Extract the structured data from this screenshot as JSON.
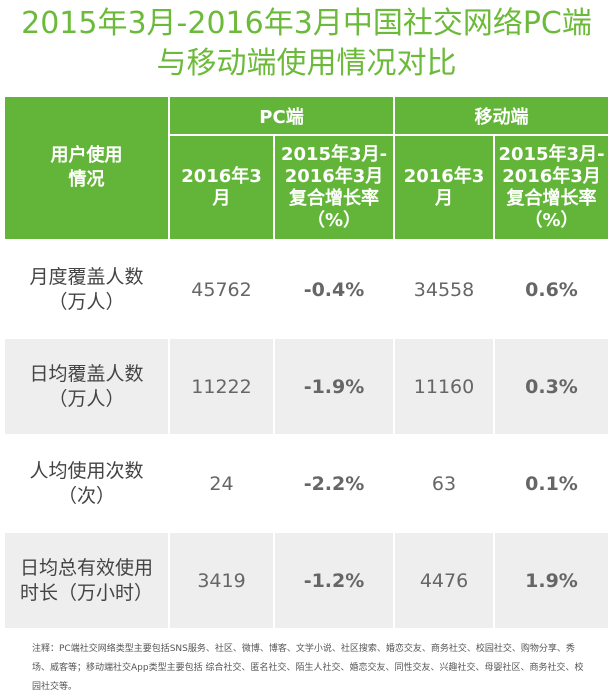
{
  "title": {
    "line1": "2015年3月-2016年3月中国社交网络PC端",
    "line2": "与移动端使用情况对比"
  },
  "header": {
    "corner": [
      "用户使用",
      "情况"
    ],
    "pc_label": "PC端",
    "mobile_label": "移动端",
    "col_value": [
      "2016年3",
      "月"
    ],
    "col_rate": [
      "2015年3月-",
      "2016年3月",
      "复合增长率",
      "（%）"
    ]
  },
  "rows": [
    {
      "label": [
        "月度覆盖人数",
        "（万人）"
      ],
      "pc_value": "45762",
      "pc_rate": "-0.4%",
      "mobile_value": "34558",
      "mobile_rate": "0.6%"
    },
    {
      "label": [
        "日均覆盖人数",
        "（万人）"
      ],
      "pc_value": "11222",
      "pc_rate": "-1.9%",
      "mobile_value": "11160",
      "mobile_rate": "0.3%"
    },
    {
      "label": [
        "人均使用次数",
        "（次）"
      ],
      "pc_value": "24",
      "pc_rate": "-2.2%",
      "mobile_value": "63",
      "mobile_rate": "0.1%"
    },
    {
      "label": [
        "日均总有效使用",
        "时长（万小时）"
      ],
      "pc_value": "3419",
      "pc_rate": "-1.2%",
      "mobile_value": "4476",
      "mobile_rate": "1.9%"
    }
  ],
  "note": "注释：PC端社交网络类型主要包括SNS服务、社区、微博、博客、文学小说、社区搜索、婚恋交友、商务社交、校园社交、购物分享、秀场、威客等；移动端社交App类型主要包括 综合社交、匿名社交、陌生人社交、婚恋交友、同性交友、兴趣社交、母婴社区、商务社交、校园社交等。",
  "colors": {
    "title": "#6cba3a",
    "header_bg": "#63b53a",
    "row_alt_bg": "#eeeeee"
  }
}
